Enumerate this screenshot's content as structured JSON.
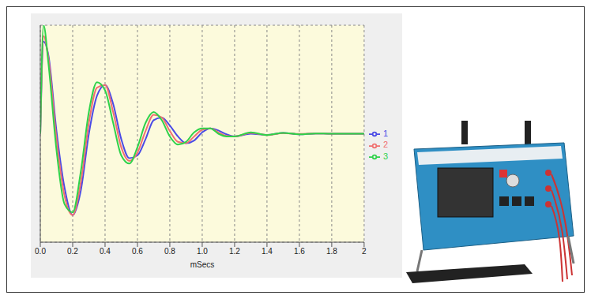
{
  "chart_data": {
    "type": "line",
    "x_label": "mSecs",
    "x": [
      0,
      0.02,
      0.05,
      0.1,
      0.15,
      0.2,
      0.25,
      0.3,
      0.35,
      0.4,
      0.45,
      0.5,
      0.55,
      0.6,
      0.65,
      0.7,
      0.75,
      0.8,
      0.85,
      0.9,
      0.95,
      1.0,
      1.05,
      1.1,
      1.15,
      1.2,
      1.3,
      1.4,
      1.5,
      1.6,
      1.7,
      1.8,
      1.9,
      2.0
    ],
    "series": [
      {
        "name": "1",
        "color": "#4a4ae6",
        "values": [
          0,
          3.4,
          2.9,
          0.1,
          -2.0,
          -3.0,
          -2.1,
          0.0,
          1.4,
          1.8,
          1.1,
          -0.2,
          -0.9,
          -0.8,
          -0.2,
          0.5,
          0.6,
          0.3,
          -0.1,
          -0.35,
          -0.25,
          0.05,
          0.2,
          0.12,
          -0.02,
          -0.1,
          0.0,
          -0.04,
          0.03,
          -0.02,
          0.01,
          0,
          0,
          0
        ]
      },
      {
        "name": "2",
        "color": "#f07070",
        "values": [
          0,
          3.6,
          2.8,
          -0.2,
          -2.3,
          -3.0,
          -1.8,
          0.4,
          1.7,
          1.8,
          0.8,
          -0.5,
          -1.0,
          -0.7,
          0.1,
          0.7,
          0.6,
          0.1,
          -0.3,
          -0.35,
          -0.1,
          0.15,
          0.2,
          0.05,
          -0.08,
          -0.1,
          0.03,
          -0.05,
          0.02,
          -0.01,
          0.01,
          0,
          0,
          0
        ]
      },
      {
        "name": "3",
        "color": "#2ed24a",
        "values": [
          0,
          4.0,
          2.6,
          -0.6,
          -2.6,
          -2.9,
          -1.4,
          0.8,
          1.9,
          1.6,
          0.4,
          -0.8,
          -1.1,
          -0.5,
          0.4,
          0.8,
          0.5,
          -0.1,
          -0.4,
          -0.3,
          0.05,
          0.2,
          0.2,
          0.0,
          -0.1,
          -0.1,
          0.05,
          -0.05,
          0.03,
          -0.02,
          0.01,
          0,
          0,
          0
        ]
      }
    ],
    "xlim": [
      0,
      2
    ],
    "xticks": [
      {
        "value": 0,
        "label": "0.0"
      },
      0.2,
      0.4,
      0.6,
      0.8,
      {
        "value": 1,
        "label": "1.0"
      },
      1.2,
      1.4,
      1.6,
      1.8,
      2
    ],
    "ylim": [
      -4,
      4
    ],
    "yticks": [
      -4,
      -3,
      -2,
      -1,
      0,
      1,
      2,
      3,
      4
    ],
    "grid": true,
    "legend": "right",
    "tick_labels": "x"
  }
}
